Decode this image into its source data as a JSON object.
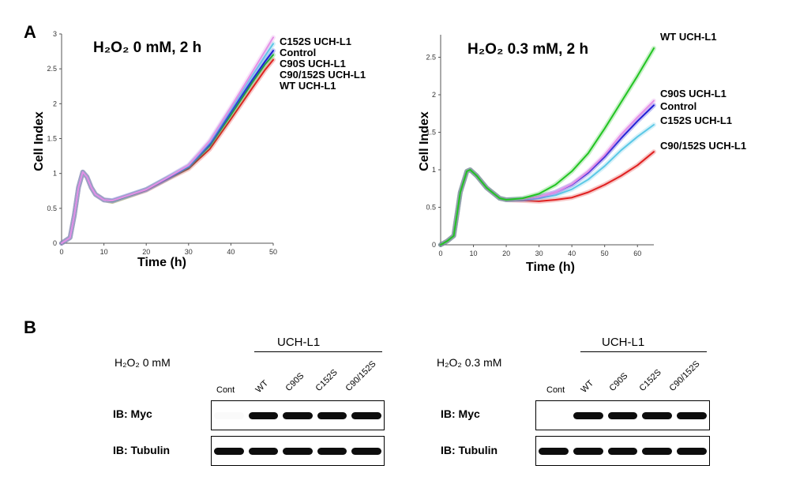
{
  "panel_a_label": "A",
  "panel_b_label": "B",
  "chart_data": [
    {
      "type": "line",
      "title": "H₂O₂ 0 mM, 2 h",
      "xlabel": "Time (h)",
      "ylabel": "Cell Index",
      "xlim": [
        0,
        50
      ],
      "ylim": [
        0,
        3
      ],
      "xticks": [
        0,
        10,
        20,
        30,
        40,
        50
      ],
      "yticks": [
        0,
        0.5,
        1,
        1.5,
        2,
        2.5,
        3
      ],
      "legend_position": "right",
      "legend": [
        "C152S UCH-L1",
        "Control",
        "C90S UCH-L1",
        "C90/152S UCH-L1",
        "WT UCH-L1"
      ],
      "x": [
        0,
        2,
        3,
        4,
        5,
        6,
        7,
        8,
        10,
        12,
        15,
        20,
        25,
        30,
        35,
        40,
        45,
        48,
        50
      ],
      "series": [
        {
          "color": "#e58fe6",
          "values": [
            0,
            0.08,
            0.4,
            0.8,
            1.02,
            0.95,
            0.8,
            0.7,
            0.62,
            0.61,
            0.67,
            0.77,
            0.94,
            1.12,
            1.47,
            1.95,
            2.45,
            2.75,
            2.95
          ]
        },
        {
          "color": "#5bc8e6",
          "values": [
            0,
            0.08,
            0.4,
            0.8,
            1.02,
            0.95,
            0.8,
            0.7,
            0.62,
            0.61,
            0.67,
            0.77,
            0.94,
            1.11,
            1.45,
            1.92,
            2.4,
            2.68,
            2.86
          ]
        },
        {
          "color": "#1a1ad6",
          "values": [
            0,
            0.08,
            0.4,
            0.8,
            1.02,
            0.95,
            0.8,
            0.7,
            0.62,
            0.61,
            0.67,
            0.77,
            0.93,
            1.1,
            1.42,
            1.88,
            2.34,
            2.6,
            2.76
          ]
        },
        {
          "color": "#22c422",
          "values": [
            0,
            0.08,
            0.4,
            0.8,
            1.02,
            0.95,
            0.8,
            0.7,
            0.62,
            0.6,
            0.66,
            0.77,
            0.93,
            1.09,
            1.4,
            1.84,
            2.3,
            2.56,
            2.7
          ]
        },
        {
          "color": "#e02020",
          "values": [
            0,
            0.08,
            0.4,
            0.8,
            1.02,
            0.95,
            0.8,
            0.7,
            0.62,
            0.6,
            0.66,
            0.76,
            0.92,
            1.07,
            1.35,
            1.78,
            2.22,
            2.48,
            2.63
          ]
        }
      ]
    },
    {
      "type": "line",
      "title": "H₂O₂ 0.3 mM, 2 h",
      "xlabel": "Time (h)",
      "ylabel": "Cell Index",
      "xlim": [
        0,
        65
      ],
      "ylim": [
        0,
        2.8
      ],
      "xticks": [
        0,
        10,
        20,
        30,
        40,
        50,
        60
      ],
      "yticks": [
        0,
        0.5,
        1,
        1.5,
        2,
        2.5
      ],
      "legend_position": "right",
      "legend": [
        "WT UCH-L1",
        "C90S UCH-L1",
        "Control",
        "C152S UCH-L1",
        "C90/152S UCH-L1"
      ],
      "x": [
        0,
        2,
        4,
        6,
        8,
        9,
        11,
        14,
        18,
        20,
        25,
        30,
        35,
        40,
        45,
        50,
        55,
        60,
        65
      ],
      "series": [
        {
          "color": "#22c422",
          "values": [
            0,
            0.05,
            0.12,
            0.7,
            0.98,
            1.0,
            0.92,
            0.76,
            0.62,
            0.6,
            0.62,
            0.68,
            0.8,
            0.98,
            1.22,
            1.55,
            1.9,
            2.25,
            2.62
          ]
        },
        {
          "color": "#e58fe6",
          "values": [
            0,
            0.05,
            0.12,
            0.7,
            0.98,
            1.0,
            0.92,
            0.76,
            0.62,
            0.6,
            0.61,
            0.64,
            0.7,
            0.81,
            0.98,
            1.2,
            1.47,
            1.7,
            1.92
          ]
        },
        {
          "color": "#1a1ad6",
          "values": [
            0,
            0.05,
            0.12,
            0.7,
            0.98,
            1.0,
            0.92,
            0.76,
            0.62,
            0.6,
            0.61,
            0.64,
            0.7,
            0.8,
            0.96,
            1.17,
            1.42,
            1.65,
            1.86
          ]
        },
        {
          "color": "#5bc8e6",
          "values": [
            0,
            0.05,
            0.12,
            0.7,
            0.98,
            1.0,
            0.92,
            0.76,
            0.62,
            0.6,
            0.6,
            0.62,
            0.66,
            0.74,
            0.87,
            1.05,
            1.26,
            1.44,
            1.6
          ]
        },
        {
          "color": "#e02020",
          "values": [
            0,
            0.05,
            0.12,
            0.7,
            0.98,
            1.0,
            0.92,
            0.76,
            0.62,
            0.6,
            0.59,
            0.58,
            0.6,
            0.63,
            0.7,
            0.8,
            0.92,
            1.06,
            1.24
          ]
        }
      ]
    }
  ],
  "blots": [
    {
      "condition": "H₂O₂ 0 mM",
      "group": "UCH-L1",
      "lanes": [
        "Cont",
        "WT",
        "C90S",
        "C152S",
        "C90/152S"
      ],
      "rows": [
        {
          "label": "IB: Myc",
          "intensity": [
            0.05,
            1,
            1,
            1,
            1
          ]
        },
        {
          "label": "IB: Tubulin",
          "intensity": [
            1,
            1,
            1,
            1,
            1
          ]
        }
      ]
    },
    {
      "condition": "H₂O₂ 0.3 mM",
      "group": "UCH-L1",
      "lanes": [
        "Cont",
        "WT",
        "C90S",
        "C152S",
        "C90/152S"
      ],
      "rows": [
        {
          "label": "IB: Myc",
          "intensity": [
            0,
            1,
            1,
            1,
            1
          ]
        },
        {
          "label": "IB: Tubulin",
          "intensity": [
            1,
            1,
            1,
            1,
            1
          ]
        }
      ]
    }
  ]
}
